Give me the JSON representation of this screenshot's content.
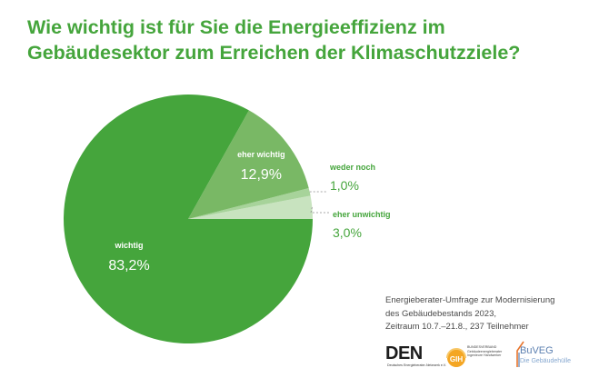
{
  "title": {
    "line1": "Wie wichtig ist für Sie die Energieeffizienz im",
    "line2": "Gebäudesektor zum Erreichen der Klimaschutzziele?"
  },
  "chart_data": {
    "type": "pie",
    "slices": [
      {
        "label": "wichtig",
        "value": 83.2,
        "value_label": "83,2%",
        "color": "#45a53c"
      },
      {
        "label": "eher wichtig",
        "value": 12.9,
        "value_label": "12,9%",
        "color": "#79b865"
      },
      {
        "label": "weder noch",
        "value": 1.0,
        "value_label": "1,0%",
        "color": "#a7d39a"
      },
      {
        "label": "eher unwichtig",
        "value": 3.0,
        "value_label": "3,0%",
        "color": "#c8e3bf"
      }
    ]
  },
  "source": {
    "line1": "Energieberater-Umfrage zur Modernisierung",
    "line2": "des Gebäudebestands 2023,",
    "line3": "Zeitraum 10.7.–21.8., 237 Teilnehmer"
  },
  "logos": {
    "den": {
      "mark": "DEN",
      "sub": "Deutsches Energieberater-Netzwerk e.V."
    },
    "gih": {
      "mark": "GIH",
      "sub": "BUNDESVERBAND Gebäudeenergieberater Ingenieure Handwerker"
    },
    "buveg": {
      "name": "BuVEG",
      "sub": "Die Gebäudehülle"
    }
  }
}
